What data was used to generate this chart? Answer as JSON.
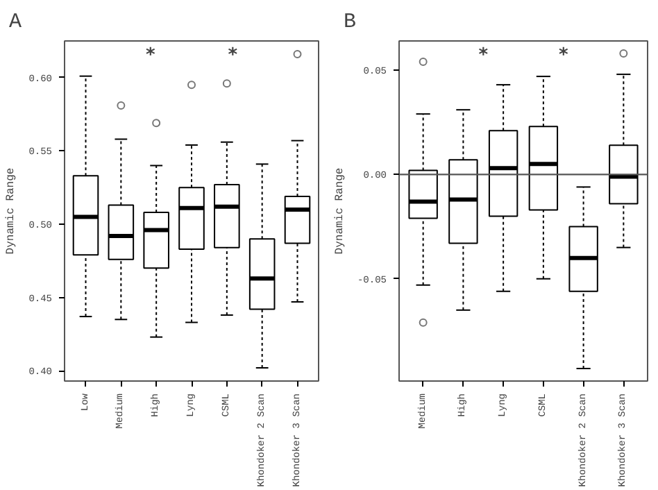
{
  "chart_data": [
    {
      "type": "box",
      "title": "A",
      "ylabel": "Dynamic Range",
      "categories": [
        "Low",
        "Medium",
        "High",
        "Lyng",
        "CSML",
        "Khondoker 2 Scan",
        "Khondoker 3 Scan"
      ],
      "boxes": [
        {
          "low": 0.437,
          "q1": 0.479,
          "median": 0.505,
          "q3": 0.533,
          "high": 0.601
        },
        {
          "low": 0.435,
          "q1": 0.476,
          "median": 0.492,
          "q3": 0.513,
          "high": 0.558,
          "outliers": [
            0.581
          ]
        },
        {
          "low": 0.423,
          "q1": 0.47,
          "median": 0.496,
          "q3": 0.508,
          "high": 0.54,
          "outliers": [
            0.569
          ]
        },
        {
          "low": 0.433,
          "q1": 0.483,
          "median": 0.511,
          "q3": 0.525,
          "high": 0.554,
          "outliers": [
            0.595
          ]
        },
        {
          "low": 0.438,
          "q1": 0.484,
          "median": 0.512,
          "q3": 0.527,
          "high": 0.556,
          "outliers": [
            0.596
          ]
        },
        {
          "low": 0.402,
          "q1": 0.442,
          "median": 0.463,
          "q3": 0.49,
          "high": 0.541
        },
        {
          "low": 0.447,
          "q1": 0.487,
          "median": 0.51,
          "q3": 0.519,
          "high": 0.557,
          "outliers": [
            0.616
          ]
        }
      ],
      "ylim": [
        0.393,
        0.625
      ],
      "yticks": [
        {
          "value": 0.4,
          "label": "0.40"
        },
        {
          "value": 0.45,
          "label": "0.45"
        },
        {
          "value": 0.5,
          "label": "0.50"
        },
        {
          "value": 0.55,
          "label": "0.55"
        },
        {
          "value": 0.6,
          "label": "0.60"
        }
      ],
      "annotations": [
        "*",
        "*"
      ],
      "grid": false
    },
    {
      "type": "box",
      "title": "B",
      "ylabel": "Dynamic Range",
      "categories": [
        "Medium",
        "High",
        "Lyng",
        "CSML",
        "Khondoker 2 Scan",
        "Khondoker 3 Scan"
      ],
      "boxes": [
        {
          "low": -0.053,
          "q1": -0.021,
          "median": -0.013,
          "q3": 0.002,
          "high": 0.029,
          "outliers": [
            0.054,
            -0.071
          ]
        },
        {
          "low": -0.065,
          "q1": -0.033,
          "median": -0.012,
          "q3": 0.007,
          "high": 0.031
        },
        {
          "low": -0.056,
          "q1": -0.02,
          "median": 0.003,
          "q3": 0.021,
          "high": 0.043
        },
        {
          "low": -0.05,
          "q1": -0.017,
          "median": 0.005,
          "q3": 0.023,
          "high": 0.047
        },
        {
          "low": -0.093,
          "q1": -0.056,
          "median": -0.04,
          "q3": -0.025,
          "high": -0.006
        },
        {
          "low": -0.035,
          "q1": -0.014,
          "median": -0.001,
          "q3": 0.014,
          "high": 0.048,
          "outliers": [
            0.058
          ]
        }
      ],
      "ylim": [
        -0.099,
        0.064
      ],
      "yticks": [
        -0.05,
        {
          "value": 0,
          "label": "0.00"
        },
        0.05
      ],
      "ref_lines": [
        {
          "axis": "y",
          "value": 0,
          "color": "#555555"
        }
      ],
      "annotations": [
        "*",
        "*"
      ],
      "grid": false
    }
  ]
}
